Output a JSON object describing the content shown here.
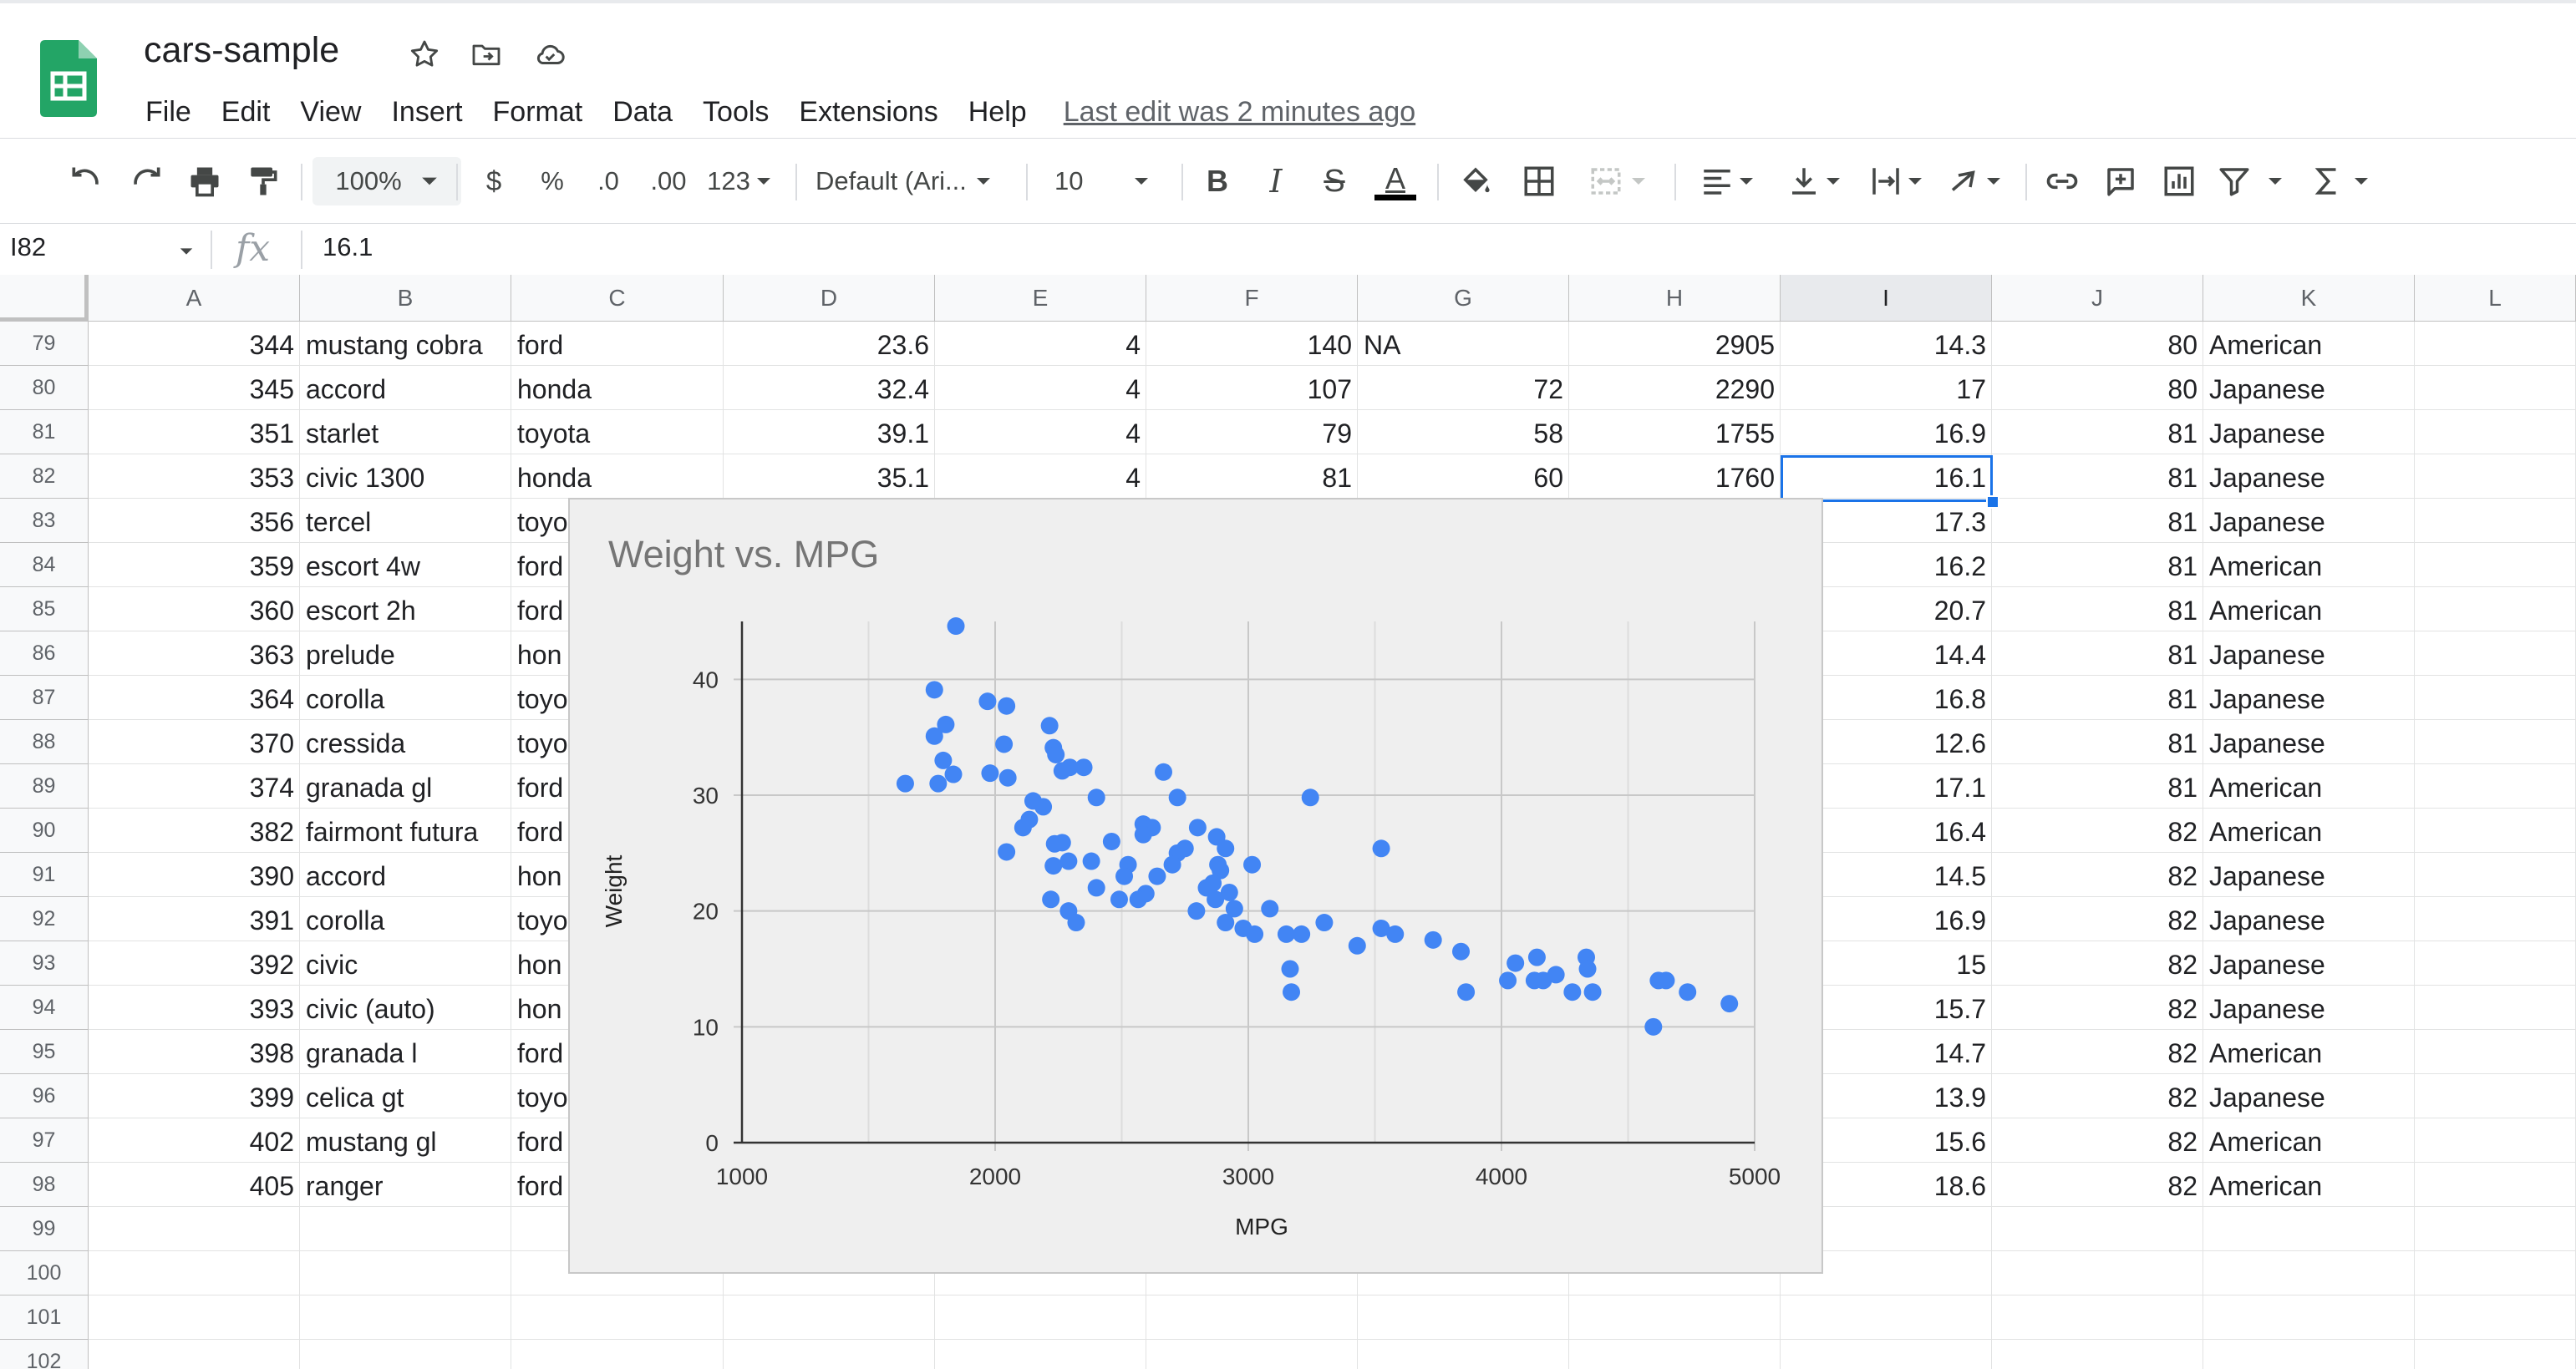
{
  "app": {
    "doc_title": "cars-sample",
    "menu": [
      "File",
      "Edit",
      "View",
      "Insert",
      "Format",
      "Data",
      "Tools",
      "Extensions",
      "Help"
    ],
    "last_edit": "Last edit was 2 minutes ago"
  },
  "toolbar": {
    "zoom": "100%",
    "currency": "$",
    "percent": "%",
    "decrease_decimals": ".0",
    "increase_decimals": ".00",
    "more_formats": "123",
    "font": "Default (Ari...",
    "font_size": "10",
    "bold": "B",
    "italic": "I",
    "strikethrough": "S",
    "text_color": "A",
    "text_color_hex": "#000000"
  },
  "formula_bar": {
    "cell_ref": "I82",
    "fx": "fx",
    "value": "16.1"
  },
  "grid": {
    "columns": [
      "A",
      "B",
      "C",
      "D",
      "E",
      "F",
      "G",
      "H",
      "I",
      "J",
      "K",
      "L"
    ],
    "selected_column": "I",
    "row_numbers": [
      "79",
      "80",
      "81",
      "82",
      "83",
      "84",
      "85",
      "86",
      "87",
      "88",
      "89",
      "90",
      "91",
      "92",
      "93",
      "94",
      "95",
      "96",
      "97",
      "98",
      "99",
      "100",
      "101",
      "102"
    ],
    "rows": [
      [
        "344",
        "mustang cobra",
        "ford",
        "23.6",
        "4",
        "140",
        "NA",
        "2905",
        "14.3",
        "80",
        "American"
      ],
      [
        "345",
        "accord",
        "honda",
        "32.4",
        "4",
        "107",
        "72",
        "2290",
        "17",
        "80",
        "Japanese"
      ],
      [
        "351",
        "starlet",
        "toyota",
        "39.1",
        "4",
        "79",
        "58",
        "1755",
        "16.9",
        "81",
        "Japanese"
      ],
      [
        "353",
        "civic 1300",
        "honda",
        "35.1",
        "4",
        "81",
        "60",
        "1760",
        "16.1",
        "81",
        "Japanese"
      ],
      [
        "356",
        "tercel",
        "toyo",
        "",
        "",
        "",
        "",
        "",
        "17.3",
        "81",
        "Japanese"
      ],
      [
        "359",
        "escort 4w",
        "ford",
        "",
        "",
        "",
        "",
        "",
        "16.2",
        "81",
        "American"
      ],
      [
        "360",
        "escort 2h",
        "ford",
        "",
        "",
        "",
        "",
        "",
        "20.7",
        "81",
        "American"
      ],
      [
        "363",
        "prelude",
        "hon",
        "",
        "",
        "",
        "",
        "",
        "14.4",
        "81",
        "Japanese"
      ],
      [
        "364",
        "corolla",
        "toyo",
        "",
        "",
        "",
        "",
        "",
        "16.8",
        "81",
        "Japanese"
      ],
      [
        "370",
        "cressida",
        "toyo",
        "",
        "",
        "",
        "",
        "",
        "12.6",
        "81",
        "Japanese"
      ],
      [
        "374",
        "granada gl",
        "ford",
        "",
        "",
        "",
        "",
        "",
        "17.1",
        "81",
        "American"
      ],
      [
        "382",
        "fairmont futura",
        "ford",
        "",
        "",
        "",
        "",
        "",
        "16.4",
        "82",
        "American"
      ],
      [
        "390",
        "accord",
        "hon",
        "",
        "",
        "",
        "",
        "",
        "14.5",
        "82",
        "Japanese"
      ],
      [
        "391",
        "corolla",
        "toyo",
        "",
        "",
        "",
        "",
        "",
        "16.9",
        "82",
        "Japanese"
      ],
      [
        "392",
        "civic",
        "hon",
        "",
        "",
        "",
        "",
        "",
        "15",
        "82",
        "Japanese"
      ],
      [
        "393",
        "civic (auto)",
        "hon",
        "",
        "",
        "",
        "",
        "",
        "15.7",
        "82",
        "Japanese"
      ],
      [
        "398",
        "granada l",
        "ford",
        "",
        "",
        "",
        "",
        "",
        "14.7",
        "82",
        "American"
      ],
      [
        "399",
        "celica gt",
        "toyo",
        "",
        "",
        "",
        "",
        "",
        "13.9",
        "82",
        "Japanese"
      ],
      [
        "402",
        "mustang gl",
        "ford",
        "",
        "",
        "",
        "",
        "",
        "15.6",
        "82",
        "American"
      ],
      [
        "405",
        "ranger",
        "ford",
        "",
        "",
        "",
        "",
        "",
        "18.6",
        "82",
        "American"
      ]
    ]
  },
  "chart_data": {
    "type": "scatter",
    "title": "Weight vs. MPG",
    "xlabel": "MPG",
    "ylabel": "Weight",
    "xlim": [
      1000,
      5000
    ],
    "ylim": [
      0,
      45
    ],
    "xticks": [
      1000,
      2000,
      3000,
      4000,
      5000
    ],
    "yticks": [
      0,
      10,
      20,
      30,
      40
    ],
    "grid": true,
    "color": "#4285f4",
    "points": [
      [
        1845,
        44.6
      ],
      [
        1760,
        39.1
      ],
      [
        1970,
        38.1
      ],
      [
        2045,
        37.7
      ],
      [
        2215,
        36
      ],
      [
        1805,
        36.1
      ],
      [
        1760,
        35.1
      ],
      [
        2035,
        34.4
      ],
      [
        2230,
        34.1
      ],
      [
        2240,
        33.5
      ],
      [
        1795,
        33
      ],
      [
        2295,
        32.4
      ],
      [
        2350,
        32.4
      ],
      [
        2265,
        32.1
      ],
      [
        2665,
        32
      ],
      [
        1980,
        31.9
      ],
      [
        1835,
        31.8
      ],
      [
        2050,
        31.5
      ],
      [
        1775,
        31
      ],
      [
        1645,
        31
      ],
      [
        2720,
        29.8
      ],
      [
        2150,
        29.5
      ],
      [
        3245,
        29.8
      ],
      [
        2400,
        29.8
      ],
      [
        2190,
        29
      ],
      [
        2135,
        27.9
      ],
      [
        2110,
        27.2
      ],
      [
        2585,
        27.5
      ],
      [
        2620,
        27.2
      ],
      [
        2585,
        26.6
      ],
      [
        2800,
        27.2
      ],
      [
        2460,
        26
      ],
      [
        2875,
        26.4
      ],
      [
        3525,
        25.4
      ],
      [
        2235,
        25.8
      ],
      [
        2265,
        25.9
      ],
      [
        2045,
        25.1
      ],
      [
        2910,
        25.4
      ],
      [
        2720,
        25
      ],
      [
        2750,
        25.4
      ],
      [
        2700,
        24
      ],
      [
        2525,
        24
      ],
      [
        2880,
        24
      ],
      [
        2290,
        24.3
      ],
      [
        2380,
        24.3
      ],
      [
        3015,
        24
      ],
      [
        2230,
        23.9
      ],
      [
        2890,
        23.5
      ],
      [
        2510,
        23
      ],
      [
        2640,
        23
      ],
      [
        2860,
        22.4
      ],
      [
        2400,
        22
      ],
      [
        2835,
        22
      ],
      [
        2595,
        21.5
      ],
      [
        2925,
        21.6
      ],
      [
        2565,
        21
      ],
      [
        2490,
        21
      ],
      [
        2945,
        20.2
      ],
      [
        2220,
        21
      ],
      [
        2870,
        21
      ],
      [
        3085,
        20.2
      ],
      [
        2795,
        20
      ],
      [
        2290,
        20
      ],
      [
        3025,
        18
      ],
      [
        2320,
        19
      ],
      [
        3300,
        19
      ],
      [
        2910,
        19
      ],
      [
        3150,
        18
      ],
      [
        3210,
        18
      ],
      [
        2980,
        18.5
      ],
      [
        3525,
        18.5
      ],
      [
        3580,
        18
      ],
      [
        3730,
        17.5
      ],
      [
        3430,
        17
      ],
      [
        3840,
        16.5
      ],
      [
        4140,
        16
      ],
      [
        4335,
        16
      ],
      [
        3165,
        15
      ],
      [
        4055,
        15.5
      ],
      [
        4340,
        15
      ],
      [
        4025,
        14
      ],
      [
        4130,
        14
      ],
      [
        4165,
        14
      ],
      [
        4215,
        14.5
      ],
      [
        4650,
        14
      ],
      [
        4620,
        14
      ],
      [
        4735,
        13
      ],
      [
        4280,
        13
      ],
      [
        4360,
        13
      ],
      [
        3860,
        13
      ],
      [
        3170,
        13
      ],
      [
        4900,
        12
      ],
      [
        4600,
        10
      ]
    ]
  }
}
